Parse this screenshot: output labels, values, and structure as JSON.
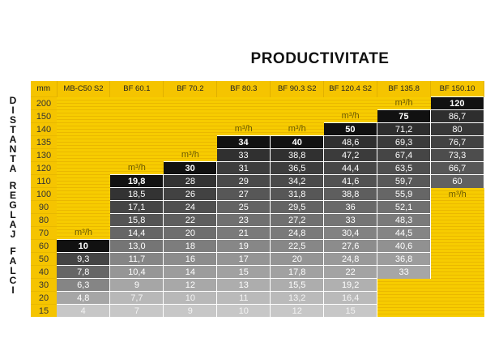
{
  "title": "PRODUCTIVITATE",
  "side_label": [
    "D",
    "I",
    "S",
    "T",
    "A",
    "N",
    "T",
    "A",
    "",
    "R",
    "E",
    "G",
    "L",
    "A",
    "J",
    "",
    "F",
    "A",
    "L",
    "C",
    "I"
  ],
  "header": {
    "unit": "mm",
    "columns": [
      "MB-C50 S2",
      "BF 60.1",
      "BF 70.2",
      "BF 80.3",
      "BF 90.3 S2",
      "BF 120.4 S2",
      "BF 135.8",
      "BF 150.10"
    ]
  },
  "rows": [
    {
      "mm": "200",
      "cells": [
        "",
        "",
        "",
        "",
        "",
        "",
        "m³/h",
        "120"
      ]
    },
    {
      "mm": "150",
      "cells": [
        "",
        "",
        "",
        "",
        "",
        "m³/h",
        "75",
        "86,7"
      ]
    },
    {
      "mm": "140",
      "cells": [
        "",
        "",
        "",
        "m³/h",
        "m³/h",
        "50",
        "71,2",
        "80"
      ]
    },
    {
      "mm": "135",
      "cells": [
        "",
        "",
        "",
        "34",
        "40",
        "48,6",
        "69,3",
        "76,7"
      ]
    },
    {
      "mm": "130",
      "cells": [
        "",
        "",
        "m³/h",
        "33",
        "38,8",
        "47,2",
        "67,4",
        "73,3"
      ]
    },
    {
      "mm": "120",
      "cells": [
        "",
        "m³/h",
        "30",
        "31",
        "36,5",
        "44,4",
        "63,5",
        "66,7"
      ]
    },
    {
      "mm": "110",
      "cells": [
        "",
        "19,8",
        "28",
        "29",
        "34,2",
        "41,6",
        "59,7",
        "60"
      ]
    },
    {
      "mm": "100",
      "cells": [
        "",
        "18,5",
        "26",
        "27",
        "31,8",
        "38,8",
        "55,9",
        "m³/h"
      ]
    },
    {
      "mm": "90",
      "cells": [
        "",
        "17,1",
        "24",
        "25",
        "29,5",
        "36",
        "52,1",
        ""
      ]
    },
    {
      "mm": "80",
      "cells": [
        "",
        "15,8",
        "22",
        "23",
        "27,2",
        "33",
        "48,3",
        ""
      ]
    },
    {
      "mm": "70",
      "cells": [
        "m³/h",
        "14,4",
        "20",
        "21",
        "24,8",
        "30,4",
        "44,5",
        ""
      ]
    },
    {
      "mm": "60",
      "cells": [
        "10",
        "13,0",
        "18",
        "19",
        "22,5",
        "27,6",
        "40,6",
        ""
      ]
    },
    {
      "mm": "50",
      "cells": [
        "9,3",
        "11,7",
        "16",
        "17",
        "20",
        "24,8",
        "36,8",
        ""
      ]
    },
    {
      "mm": "40",
      "cells": [
        "7,8",
        "10,4",
        "14",
        "15",
        "17,8",
        "22",
        "33",
        ""
      ]
    },
    {
      "mm": "30",
      "cells": [
        "6,3",
        "9",
        "12",
        "13",
        "15,5",
        "19,2",
        "",
        ""
      ]
    },
    {
      "mm": "20",
      "cells": [
        "4,8",
        "7,7",
        "10",
        "11",
        "13,2",
        "16,4",
        "",
        ""
      ]
    },
    {
      "mm": "15",
      "cells": [
        "4",
        "7",
        "9",
        "10",
        "12",
        "15",
        "",
        ""
      ]
    }
  ],
  "colors": {
    "yellow": "#f5c400",
    "dark": "#111111"
  }
}
